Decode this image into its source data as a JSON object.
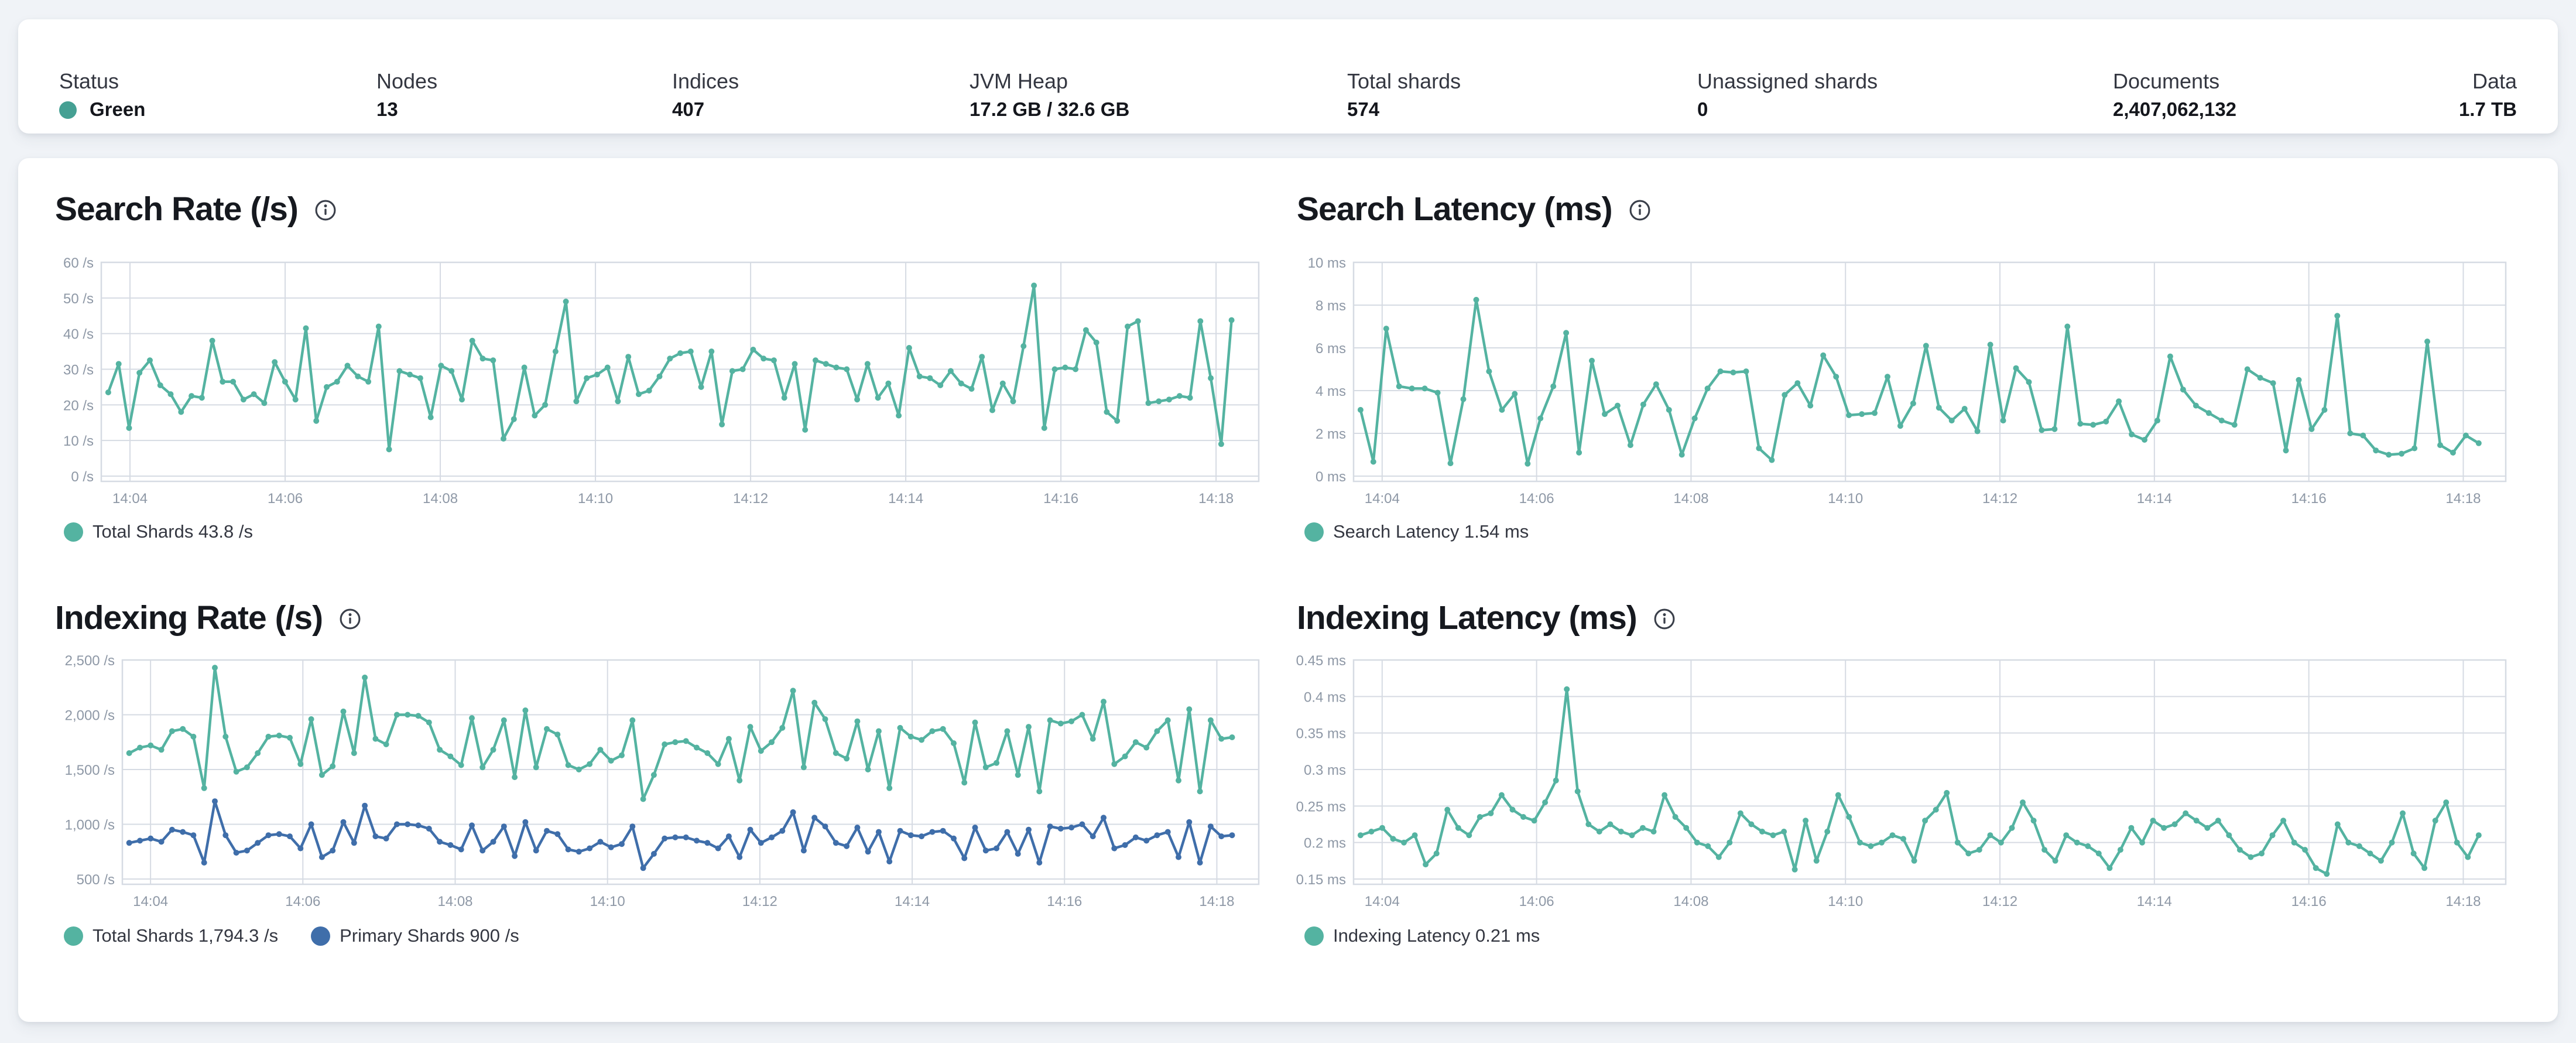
{
  "status_bar": {
    "items": [
      {
        "label": "Status",
        "value": "Green",
        "dot_color": "#45a093"
      },
      {
        "label": "Nodes",
        "value": "13"
      },
      {
        "label": "Indices",
        "value": "407"
      },
      {
        "label": "JVM Heap",
        "value": "17.2 GB / 32.6 GB"
      },
      {
        "label": "Total shards",
        "value": "574"
      },
      {
        "label": "Unassigned shards",
        "value": "0"
      },
      {
        "label": "Documents",
        "value": "2,407,062,132"
      },
      {
        "label": "Data",
        "value": "1.7 TB"
      }
    ]
  },
  "colors": {
    "teal": "#54b3a1",
    "blue": "#3f6eaa",
    "status_green_dot": "#45a093",
    "grid": "#d6dbe3",
    "axis_text": "#8e98a6",
    "title_text": "#16191f"
  },
  "chart_data": [
    {
      "type": "line",
      "title": "Search Rate (/s)",
      "ylabel": "/s",
      "grid": true,
      "legend_position": "bottom-left",
      "x_start_minute": 243.72,
      "x_end_minute": 258.2,
      "x_domain_start": 243.63,
      "x_domain_end": 258.55,
      "x_ticks": [
        {
          "minute": 244,
          "label": "14:04"
        },
        {
          "minute": 246,
          "label": "14:06"
        },
        {
          "minute": 248,
          "label": "14:08"
        },
        {
          "minute": 250,
          "label": "14:10"
        },
        {
          "minute": 252,
          "label": "14:12"
        },
        {
          "minute": 254,
          "label": "14:14"
        },
        {
          "minute": 256,
          "label": "14:16"
        },
        {
          "minute": 258,
          "label": "14:18"
        }
      ],
      "y_ticks": [
        {
          "v": 60,
          "label": "60 /s"
        },
        {
          "v": 50,
          "label": "50 /s"
        },
        {
          "v": 40,
          "label": "40 /s"
        },
        {
          "v": 30,
          "label": "30 /s"
        },
        {
          "v": 20,
          "label": "20 /s"
        },
        {
          "v": 10,
          "label": "10 /s"
        },
        {
          "v": 0,
          "label": "0 /s"
        }
      ],
      "ylim": [
        0,
        60
      ],
      "series": [
        {
          "name": "Total Shards",
          "current": "43.8 /s",
          "legend_label": "Total Shards 43.8 /s",
          "color": "#54b3a1",
          "values": [
            23.5,
            31.5,
            13.5,
            29,
            32.5,
            25.5,
            23,
            18,
            22.5,
            22,
            38,
            26.5,
            26.5,
            21.5,
            23,
            20.5,
            32,
            26.5,
            21.5,
            41.5,
            15.5,
            25,
            26.5,
            31,
            28,
            26.5,
            42,
            7.5,
            29.5,
            28.5,
            27.5,
            16.5,
            31,
            29.5,
            21.5,
            38,
            33,
            32.5,
            10.5,
            16,
            30.5,
            17,
            20,
            35,
            49,
            21,
            27.5,
            28.5,
            30.5,
            21,
            33.5,
            23,
            24,
            28,
            33,
            34.5,
            35,
            25,
            35,
            14.5,
            29.5,
            30,
            35.5,
            33,
            32.5,
            22,
            31.5,
            13,
            32.5,
            31.5,
            30.5,
            30,
            21.5,
            31.5,
            22,
            26,
            17,
            36,
            28,
            27.5,
            25.5,
            29.5,
            26,
            24.5,
            33.5,
            18.5,
            26,
            21,
            36.5,
            53.5,
            13.5,
            30,
            30.5,
            30,
            41,
            37.5,
            18,
            15.5,
            42,
            43.5,
            20.5,
            21,
            21.5,
            22.5,
            22,
            43.5,
            27.5,
            9,
            43.8
          ]
        }
      ]
    },
    {
      "type": "line",
      "title": "Search Latency (ms)",
      "ylabel": "ms",
      "grid": true,
      "legend_position": "bottom-left",
      "x_start_minute": 243.72,
      "x_end_minute": 258.2,
      "x_domain_start": 243.63,
      "x_domain_end": 258.55,
      "x_ticks": [
        {
          "minute": 244,
          "label": "14:04"
        },
        {
          "minute": 246,
          "label": "14:06"
        },
        {
          "minute": 248,
          "label": "14:08"
        },
        {
          "minute": 250,
          "label": "14:10"
        },
        {
          "minute": 252,
          "label": "14:12"
        },
        {
          "minute": 254,
          "label": "14:14"
        },
        {
          "minute": 256,
          "label": "14:16"
        },
        {
          "minute": 258,
          "label": "14:18"
        }
      ],
      "y_ticks": [
        {
          "v": 10,
          "label": "10 ms"
        },
        {
          "v": 8,
          "label": "8 ms"
        },
        {
          "v": 6,
          "label": "6 ms"
        },
        {
          "v": 4,
          "label": "4 ms"
        },
        {
          "v": 2,
          "label": "2 ms"
        },
        {
          "v": 0,
          "label": "0 ms"
        }
      ],
      "ylim": [
        0,
        10
      ],
      "series": [
        {
          "name": "Search Latency",
          "current": "1.54 ms",
          "legend_label": "Search Latency 1.54 ms",
          "color": "#54b3a1",
          "values": [
            3.1,
            0.67,
            6.9,
            4.2,
            4.1,
            4.1,
            3.9,
            0.6,
            3.6,
            8.25,
            4.9,
            3.1,
            3.85,
            0.58,
            2.7,
            4.2,
            6.7,
            1.1,
            5.4,
            2.9,
            3.3,
            1.45,
            3.35,
            4.3,
            3.1,
            1.0,
            2.7,
            4.1,
            4.9,
            4.85,
            4.9,
            1.3,
            0.75,
            3.8,
            4.35,
            3.3,
            5.65,
            4.65,
            2.85,
            2.9,
            2.95,
            4.65,
            2.35,
            3.4,
            6.1,
            3.2,
            2.6,
            3.15,
            2.1,
            6.15,
            2.6,
            5.05,
            4.4,
            2.15,
            2.2,
            7.0,
            2.45,
            2.4,
            2.55,
            3.5,
            1.95,
            1.7,
            2.6,
            5.6,
            4.05,
            3.3,
            2.95,
            2.6,
            2.4,
            5.0,
            4.6,
            4.35,
            1.2,
            4.5,
            2.2,
            3.1,
            7.5,
            2.0,
            1.9,
            1.2,
            1.0,
            1.05,
            1.3,
            6.3,
            1.45,
            1.1,
            1.9,
            1.54
          ]
        }
      ]
    },
    {
      "type": "line",
      "title": "Indexing Rate (/s)",
      "ylabel": "/s",
      "grid": true,
      "legend_position": "bottom-left",
      "x_start_minute": 243.72,
      "x_end_minute": 258.2,
      "x_domain_start": 243.63,
      "x_domain_end": 258.55,
      "x_ticks": [
        {
          "minute": 244,
          "label": "14:04"
        },
        {
          "minute": 246,
          "label": "14:06"
        },
        {
          "minute": 248,
          "label": "14:08"
        },
        {
          "minute": 250,
          "label": "14:10"
        },
        {
          "minute": 252,
          "label": "14:12"
        },
        {
          "minute": 254,
          "label": "14:14"
        },
        {
          "minute": 256,
          "label": "14:16"
        },
        {
          "minute": 258,
          "label": "14:18"
        }
      ],
      "y_ticks": [
        {
          "v": 2500,
          "label": "2,500 /s"
        },
        {
          "v": 2000,
          "label": "2,000 /s"
        },
        {
          "v": 1500,
          "label": "1,500 /s"
        },
        {
          "v": 1000,
          "label": "1,000 /s"
        },
        {
          "v": 500,
          "label": "500 /s"
        }
      ],
      "ylim": [
        500,
        2500
      ],
      "series": [
        {
          "name": "Total Shards",
          "current": "1,794.3 /s",
          "legend_label": "Total Shards 1,794.3 /s",
          "color": "#54b3a1",
          "values": [
            1650,
            1700,
            1720,
            1680,
            1850,
            1870,
            1800,
            1330,
            2430,
            1800,
            1480,
            1520,
            1650,
            1800,
            1810,
            1790,
            1550,
            1960,
            1450,
            1530,
            2030,
            1650,
            2340,
            1780,
            1730,
            2000,
            2000,
            1990,
            1930,
            1680,
            1620,
            1540,
            1970,
            1520,
            1680,
            1950,
            1430,
            2040,
            1520,
            1870,
            1820,
            1540,
            1500,
            1550,
            1680,
            1580,
            1630,
            1950,
            1230,
            1450,
            1730,
            1750,
            1760,
            1700,
            1650,
            1550,
            1780,
            1400,
            1890,
            1670,
            1750,
            1880,
            2220,
            1520,
            2110,
            1960,
            1650,
            1600,
            1940,
            1500,
            1850,
            1330,
            1880,
            1800,
            1770,
            1850,
            1870,
            1740,
            1380,
            1930,
            1520,
            1560,
            1850,
            1450,
            1890,
            1300,
            1950,
            1920,
            1940,
            2000,
            1780,
            2120,
            1550,
            1620,
            1750,
            1700,
            1850,
            1950,
            1400,
            2050,
            1300,
            1950,
            1780,
            1794.3
          ]
        },
        {
          "name": "Primary Shards",
          "current": "900 /s",
          "legend_label": "Primary Shards 900 /s",
          "color": "#3f6eaa",
          "values": [
            830,
            850,
            870,
            840,
            950,
            930,
            900,
            650,
            1210,
            900,
            740,
            760,
            830,
            900,
            910,
            890,
            780,
            1000,
            700,
            760,
            1020,
            830,
            1170,
            890,
            870,
            1000,
            1000,
            990,
            960,
            840,
            810,
            770,
            990,
            760,
            840,
            980,
            710,
            1020,
            760,
            940,
            910,
            770,
            750,
            780,
            840,
            790,
            820,
            980,
            600,
            730,
            870,
            880,
            880,
            850,
            830,
            780,
            890,
            700,
            950,
            830,
            880,
            940,
            1110,
            760,
            1060,
            980,
            830,
            800,
            970,
            750,
            930,
            660,
            940,
            900,
            890,
            930,
            940,
            870,
            690,
            970,
            760,
            780,
            930,
            730,
            950,
            650,
            980,
            960,
            970,
            1000,
            890,
            1060,
            780,
            810,
            880,
            850,
            900,
            930,
            700,
            1020,
            650,
            980,
            890,
            900
          ]
        }
      ]
    },
    {
      "type": "line",
      "title": "Indexing Latency (ms)",
      "ylabel": "ms",
      "grid": true,
      "legend_position": "bottom-left",
      "x_start_minute": 243.72,
      "x_end_minute": 258.2,
      "x_domain_start": 243.63,
      "x_domain_end": 258.55,
      "x_ticks": [
        {
          "minute": 244,
          "label": "14:04"
        },
        {
          "minute": 246,
          "label": "14:06"
        },
        {
          "minute": 248,
          "label": "14:08"
        },
        {
          "minute": 250,
          "label": "14:10"
        },
        {
          "minute": 252,
          "label": "14:12"
        },
        {
          "minute": 254,
          "label": "14:14"
        },
        {
          "minute": 256,
          "label": "14:16"
        },
        {
          "minute": 258,
          "label": "14:18"
        }
      ],
      "y_ticks": [
        {
          "v": 0.45,
          "label": "0.45 ms"
        },
        {
          "v": 0.4,
          "label": "0.4 ms"
        },
        {
          "v": 0.35,
          "label": "0.35 ms"
        },
        {
          "v": 0.3,
          "label": "0.3 ms"
        },
        {
          "v": 0.25,
          "label": "0.25 ms"
        },
        {
          "v": 0.2,
          "label": "0.2 ms"
        },
        {
          "v": 0.15,
          "label": "0.15 ms"
        }
      ],
      "ylim": [
        0.15,
        0.45
      ],
      "series": [
        {
          "name": "Indexing Latency",
          "current": "0.21 ms",
          "legend_label": "Indexing Latency 0.21 ms",
          "color": "#54b3a1",
          "values": [
            0.21,
            0.215,
            0.22,
            0.205,
            0.2,
            0.21,
            0.17,
            0.185,
            0.245,
            0.22,
            0.21,
            0.235,
            0.24,
            0.265,
            0.245,
            0.235,
            0.23,
            0.255,
            0.285,
            0.41,
            0.27,
            0.225,
            0.215,
            0.225,
            0.215,
            0.21,
            0.22,
            0.215,
            0.265,
            0.235,
            0.22,
            0.2,
            0.195,
            0.18,
            0.2,
            0.24,
            0.225,
            0.215,
            0.21,
            0.215,
            0.163,
            0.23,
            0.175,
            0.215,
            0.265,
            0.235,
            0.2,
            0.195,
            0.2,
            0.21,
            0.205,
            0.175,
            0.23,
            0.245,
            0.268,
            0.2,
            0.185,
            0.19,
            0.21,
            0.2,
            0.22,
            0.255,
            0.23,
            0.19,
            0.175,
            0.21,
            0.2,
            0.195,
            0.185,
            0.165,
            0.19,
            0.22,
            0.2,
            0.23,
            0.22,
            0.225,
            0.24,
            0.23,
            0.22,
            0.23,
            0.21,
            0.19,
            0.18,
            0.185,
            0.21,
            0.23,
            0.2,
            0.19,
            0.165,
            0.157,
            0.225,
            0.2,
            0.195,
            0.185,
            0.175,
            0.2,
            0.24,
            0.185,
            0.165,
            0.23,
            0.255,
            0.2,
            0.18,
            0.21
          ]
        }
      ]
    }
  ]
}
